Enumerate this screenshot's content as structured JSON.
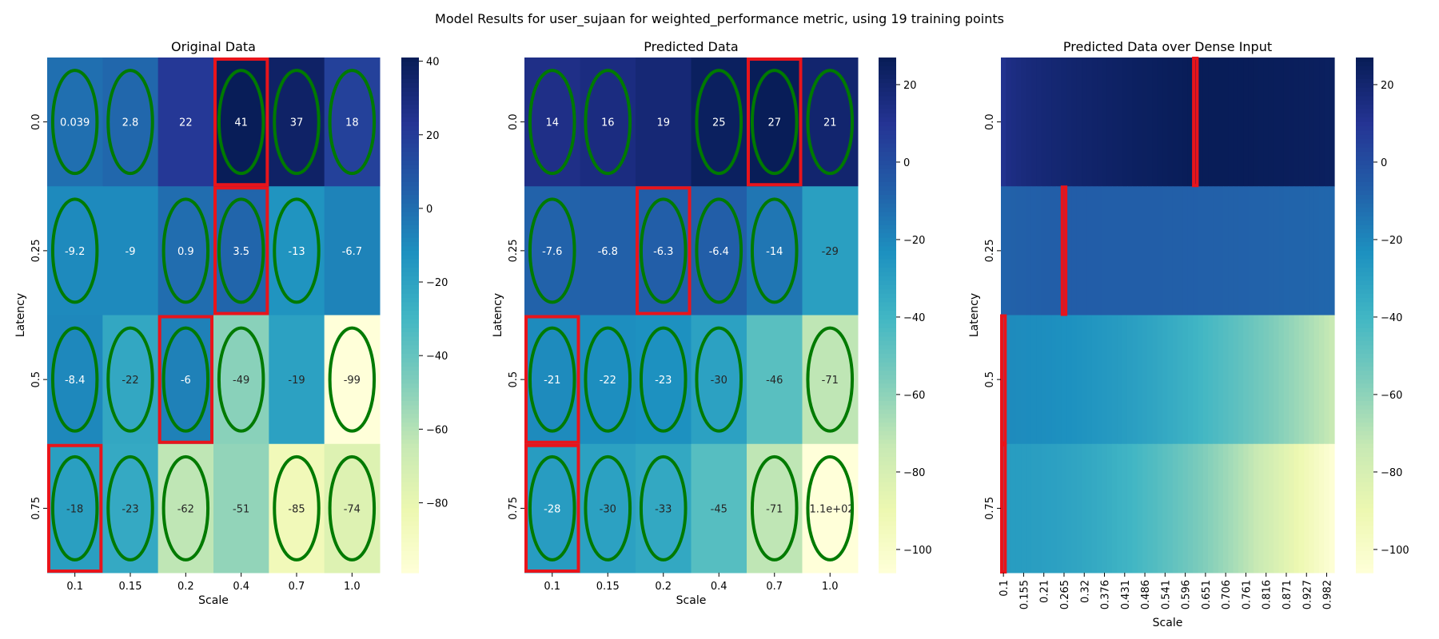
{
  "figure": {
    "suptitle": "Model Results for user_sujaan for weighted_performance metric, using 19 training points"
  },
  "colormap": [
    "#ffffd9",
    "#edf8b1",
    "#c7e9b4",
    "#7fcdbb",
    "#41b6c4",
    "#1d91c0",
    "#225ea8",
    "#253494",
    "#081d58"
  ],
  "chart_data": [
    {
      "type": "heatmap",
      "title": "Original Data",
      "xlabel": "Scale",
      "ylabel": "Latency",
      "x_ticks": [
        "0.1",
        "0.15",
        "0.2",
        "0.4",
        "0.7",
        "1.0"
      ],
      "y_ticks": [
        "0.0",
        "0.25",
        "0.5",
        "0.75"
      ],
      "values": [
        [
          0.039,
          2.8,
          22,
          41,
          37,
          18
        ],
        [
          -9.2,
          -9,
          0.9,
          3.5,
          -13,
          -6.7
        ],
        [
          -8.4,
          -22,
          -6,
          -49,
          -19,
          -99
        ],
        [
          -18,
          -23,
          -62,
          -51,
          -85,
          -74
        ]
      ],
      "cell_labels": [
        [
          "0.039",
          "2.8",
          "22",
          "41",
          "37",
          "18"
        ],
        [
          "-9.2",
          "-9",
          "0.9",
          "3.5",
          "-13",
          "-6.7"
        ],
        [
          "-8.4",
          "-22",
          "-6",
          "-49",
          "-19",
          "-99"
        ],
        [
          "-18",
          "-23",
          "-62",
          "-51",
          "-85",
          "-74"
        ]
      ],
      "vmin": -99,
      "vmax": 41,
      "colorbar_ticks": [
        40,
        20,
        0,
        -20,
        -40,
        -60,
        -80
      ],
      "colorbar_tick_labels": [
        "40",
        "20",
        "0",
        "−20",
        "−40",
        "−60",
        "−80"
      ],
      "training_points": [
        [
          0,
          0
        ],
        [
          0,
          1
        ],
        [
          0,
          3
        ],
        [
          0,
          4
        ],
        [
          0,
          5
        ],
        [
          1,
          0
        ],
        [
          1,
          2
        ],
        [
          1,
          3
        ],
        [
          1,
          4
        ],
        [
          2,
          0
        ],
        [
          2,
          1
        ],
        [
          2,
          2
        ],
        [
          2,
          3
        ],
        [
          2,
          5
        ],
        [
          3,
          0
        ],
        [
          3,
          1
        ],
        [
          3,
          2
        ],
        [
          3,
          4
        ],
        [
          3,
          5
        ]
      ],
      "best_per_row": [
        [
          0,
          3
        ],
        [
          1,
          3
        ],
        [
          2,
          2
        ],
        [
          3,
          0
        ]
      ]
    },
    {
      "type": "heatmap",
      "title": "Predicted Data",
      "xlabel": "Scale",
      "ylabel": "Latency",
      "x_ticks": [
        "0.1",
        "0.15",
        "0.2",
        "0.4",
        "0.7",
        "1.0"
      ],
      "y_ticks": [
        "0.0",
        "0.25",
        "0.5",
        "0.75"
      ],
      "values": [
        [
          14,
          16,
          19,
          25,
          27,
          21
        ],
        [
          -7.6,
          -6.8,
          -6.3,
          -6.4,
          -14,
          -29
        ],
        [
          -21,
          -22,
          -23,
          -30,
          -46,
          -71
        ],
        [
          -28,
          -30,
          -33,
          -45,
          -71,
          -110
        ]
      ],
      "cell_labels": [
        [
          "14",
          "16",
          "19",
          "25",
          "27",
          "21"
        ],
        [
          "-7.6",
          "-6.8",
          "-6.3",
          "-6.4",
          "-14",
          "-29"
        ],
        [
          "-21",
          "-22",
          "-23",
          "-30",
          "-46",
          "-71"
        ],
        [
          "-28",
          "-30",
          "-33",
          "-45",
          "-71",
          "-1.1e+02"
        ]
      ],
      "vmin": -106,
      "vmax": 27,
      "colorbar_ticks": [
        20,
        0,
        -20,
        -40,
        -60,
        -80,
        -100
      ],
      "colorbar_tick_labels": [
        "20",
        "0",
        "−20",
        "−40",
        "−60",
        "−80",
        "−100"
      ],
      "training_points": [
        [
          0,
          0
        ],
        [
          0,
          1
        ],
        [
          0,
          3
        ],
        [
          0,
          4
        ],
        [
          0,
          5
        ],
        [
          1,
          0
        ],
        [
          1,
          2
        ],
        [
          1,
          3
        ],
        [
          1,
          4
        ],
        [
          2,
          0
        ],
        [
          2,
          1
        ],
        [
          2,
          2
        ],
        [
          2,
          3
        ],
        [
          2,
          5
        ],
        [
          3,
          0
        ],
        [
          3,
          1
        ],
        [
          3,
          2
        ],
        [
          3,
          4
        ],
        [
          3,
          5
        ]
      ],
      "best_per_row": [
        [
          0,
          4
        ],
        [
          1,
          2
        ],
        [
          2,
          0
        ],
        [
          3,
          0
        ]
      ]
    },
    {
      "type": "heatmap",
      "title": "Predicted Data over Dense Input",
      "xlabel": "Scale",
      "ylabel": "Latency",
      "x_ticks": [
        "0.1",
        "0.155",
        "0.21",
        "0.265",
        "0.32",
        "0.376",
        "0.431",
        "0.486",
        "0.541",
        "0.596",
        "0.651",
        "0.706",
        "0.761",
        "0.816",
        "0.871",
        "0.927",
        "0.982"
      ],
      "y_ticks": [
        "0.0",
        "0.25",
        "0.5",
        "0.75"
      ],
      "dense_columns": 66,
      "rows": [
        {
          "start": 12,
          "peak": 27,
          "peak_at": 0.62,
          "end": 25
        },
        {
          "start": -8,
          "peak": -6,
          "peak_at": 0.27,
          "end": -9
        },
        {
          "start": -21,
          "peak": -21,
          "peak_at": 0.1,
          "end": -73
        },
        {
          "start": -28,
          "peak": -28,
          "peak_at": 0.1,
          "end": -104
        }
      ],
      "vmin": -106,
      "vmax": 27,
      "colorbar_ticks": [
        20,
        0,
        -20,
        -40,
        -60,
        -80,
        -100
      ],
      "colorbar_tick_labels": [
        "20",
        "0",
        "−20",
        "−40",
        "−60",
        "−80",
        "−100"
      ],
      "best_per_row_scale": [
        0.62,
        0.27,
        0.1,
        0.1
      ]
    }
  ]
}
